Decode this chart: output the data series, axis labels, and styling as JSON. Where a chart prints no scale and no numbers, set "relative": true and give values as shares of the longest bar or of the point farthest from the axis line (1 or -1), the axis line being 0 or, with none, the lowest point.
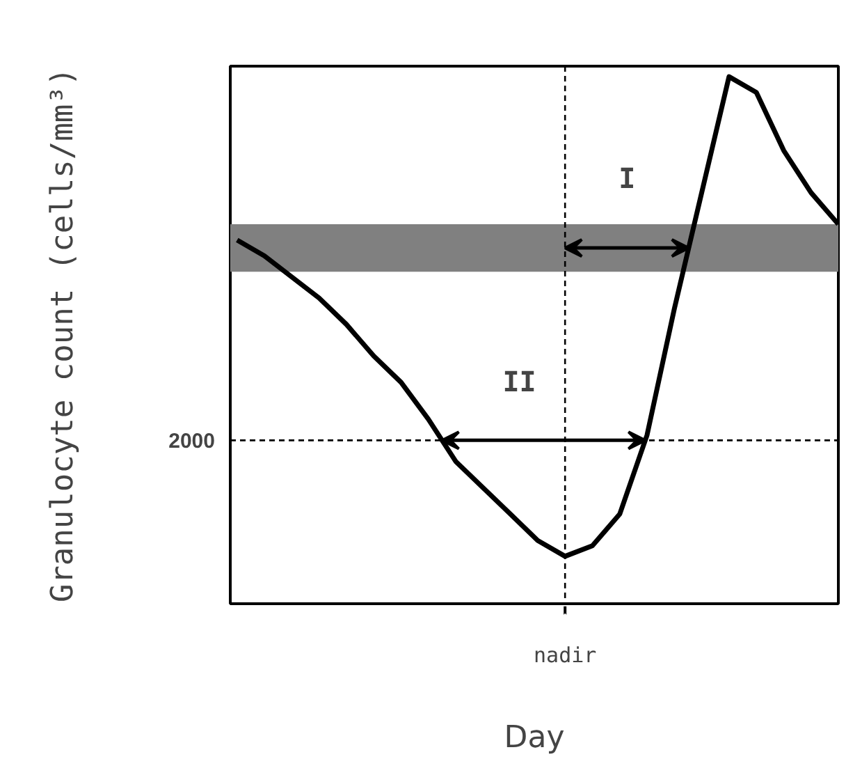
{
  "chart_data": {
    "type": "line",
    "relative": true,
    "xlabel": "Day",
    "ylabel": "Granulocyte count (cells/mm³)",
    "categories": [
      null,
      null,
      null,
      null,
      null,
      null,
      null,
      null,
      null,
      null,
      null,
      null,
      null,
      null,
      null,
      null,
      null,
      null,
      null,
      null,
      null,
      null,
      null
    ],
    "series": [
      {
        "color": "#000000",
        "values": [
          0.69,
          0.66,
          0.62,
          0.58,
          0.53,
          0.47,
          0.42,
          0.35,
          0.27,
          0.22,
          0.17,
          0.12,
          0.09,
          0.11,
          0.17,
          0.32,
          0.56,
          0.78,
          1.0,
          0.97,
          0.86,
          0.78,
          0.72
        ]
      }
    ],
    "ref_lines": [
      {
        "axis": "y",
        "value": 0.31,
        "line_style": "dashed",
        "color": "#000000"
      }
    ],
    "bands": [
      {
        "axis": "y",
        "from": 0.63,
        "to": 0.72,
        "color": "#808080"
      }
    ],
    "annotations": [
      "I",
      "II",
      "2000",
      "nadir"
    ]
  }
}
